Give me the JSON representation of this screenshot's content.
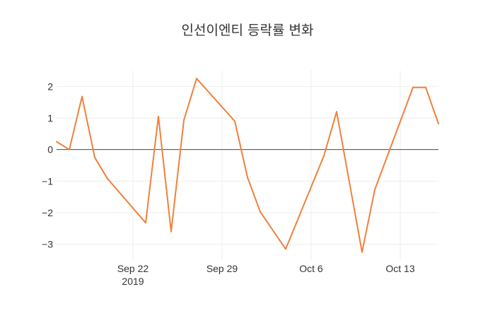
{
  "chart_data": {
    "type": "line",
    "title": "인선이엔티 등락률 변화",
    "xlabel": "",
    "ylabel": "",
    "grid": true,
    "legend": "none",
    "colors": {
      "series": "#F0803C",
      "zero_line": "#444444",
      "grid": "#eeeeee"
    },
    "x_ticks": [
      {
        "date": "2019-09-22",
        "label": "Sep 22",
        "sublabel": "2019"
      },
      {
        "date": "2019-09-29",
        "label": "Sep 29",
        "sublabel": ""
      },
      {
        "date": "2019-10-06",
        "label": "Oct 6",
        "sublabel": ""
      },
      {
        "date": "2019-10-13",
        "label": "Oct 13",
        "sublabel": ""
      }
    ],
    "y_ticks": [
      {
        "value": 2,
        "label": "2"
      },
      {
        "value": 1,
        "label": "1"
      },
      {
        "value": 0,
        "label": "0"
      },
      {
        "value": -1,
        "label": "−1"
      },
      {
        "value": -2,
        "label": "−2"
      },
      {
        "value": -3,
        "label": "−3"
      }
    ],
    "xlim": [
      "2019-09-16",
      "2019-10-16"
    ],
    "ylim": [
      -3.5,
      2.5
    ],
    "series": [
      {
        "x": [
          "2019-09-16",
          "2019-09-17",
          "2019-09-18",
          "2019-09-19",
          "2019-09-20",
          "2019-09-23",
          "2019-09-24",
          "2019-09-25",
          "2019-09-26",
          "2019-09-27",
          "2019-09-30",
          "2019-10-01",
          "2019-10-02",
          "2019-10-04",
          "2019-10-07",
          "2019-10-08",
          "2019-10-10",
          "2019-10-11",
          "2019-10-14",
          "2019-10-15",
          "2019-10-16"
        ],
        "values": [
          0.25,
          0.0,
          1.68,
          -0.25,
          -0.92,
          -2.32,
          1.05,
          -2.6,
          0.93,
          2.25,
          0.9,
          -0.88,
          -1.97,
          -3.15,
          -0.2,
          1.2,
          -3.25,
          -1.27,
          1.97,
          1.97,
          0.82
        ]
      }
    ]
  }
}
